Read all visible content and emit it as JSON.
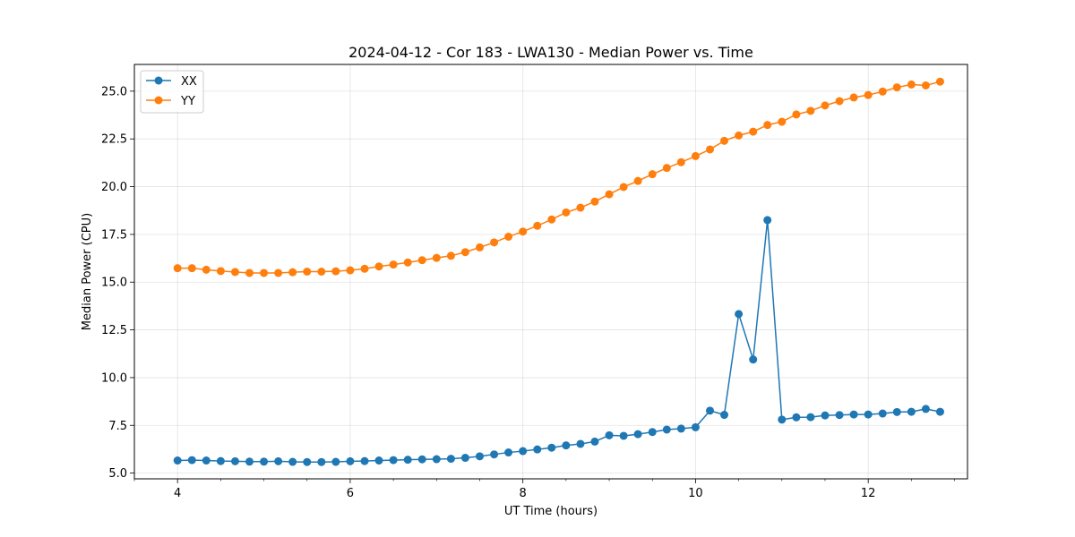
{
  "chart_data": {
    "type": "line",
    "title": "2024-04-12 - Cor 183 - LWA130 - Median Power vs. Time",
    "xlabel": "UT Time (hours)",
    "ylabel": "Median Power (CPU)",
    "xlim": [
      3.5,
      13.15
    ],
    "ylim": [
      4.7,
      26.4
    ],
    "xticks": [
      4,
      6,
      8,
      10,
      12
    ],
    "xtick_labels": [
      "4",
      "6",
      "8",
      "10",
      "12"
    ],
    "yticks": [
      5.0,
      7.5,
      10.0,
      12.5,
      15.0,
      17.5,
      20.0,
      22.5,
      25.0
    ],
    "ytick_labels": [
      "5.0",
      "7.5",
      "10.0",
      "12.5",
      "15.0",
      "17.5",
      "20.0",
      "22.5",
      "25.0"
    ],
    "grid": true,
    "legend_position": "top-left",
    "x": [
      4.0,
      4.167,
      4.333,
      4.5,
      4.667,
      4.833,
      5.0,
      5.167,
      5.333,
      5.5,
      5.667,
      5.833,
      6.0,
      6.167,
      6.333,
      6.5,
      6.667,
      6.833,
      7.0,
      7.167,
      7.333,
      7.5,
      7.667,
      7.833,
      8.0,
      8.167,
      8.333,
      8.5,
      8.667,
      8.833,
      9.0,
      9.167,
      9.333,
      9.5,
      9.667,
      9.833,
      10.0,
      10.167,
      10.333,
      10.5,
      10.667,
      10.833,
      11.0,
      11.167,
      11.333,
      11.5,
      11.667,
      11.833,
      12.0,
      12.167,
      12.333,
      12.5,
      12.667,
      12.833
    ],
    "series": [
      {
        "name": "XX",
        "color": "#1f77b4",
        "values": [
          5.66,
          5.68,
          5.66,
          5.63,
          5.62,
          5.6,
          5.6,
          5.62,
          5.59,
          5.58,
          5.58,
          5.59,
          5.62,
          5.63,
          5.66,
          5.68,
          5.7,
          5.72,
          5.73,
          5.75,
          5.8,
          5.88,
          5.98,
          6.08,
          6.15,
          6.24,
          6.33,
          6.45,
          6.53,
          6.65,
          6.98,
          6.95,
          7.04,
          7.15,
          7.28,
          7.33,
          7.4,
          8.27,
          8.05,
          13.33,
          10.95,
          18.25,
          7.8,
          7.92,
          7.93,
          8.02,
          8.04,
          8.07,
          8.07,
          8.12,
          8.2,
          8.21,
          8.36,
          8.21
        ]
      },
      {
        "name": "YY",
        "color": "#ff7f0e",
        "values": [
          15.73,
          15.73,
          15.65,
          15.58,
          15.53,
          15.48,
          15.48,
          15.48,
          15.52,
          15.55,
          15.55,
          15.57,
          15.62,
          15.7,
          15.82,
          15.92,
          16.03,
          16.15,
          16.27,
          16.38,
          16.57,
          16.82,
          17.08,
          17.38,
          17.65,
          17.95,
          18.28,
          18.65,
          18.9,
          19.22,
          19.6,
          19.98,
          20.3,
          20.65,
          20.98,
          21.28,
          21.6,
          21.95,
          22.4,
          22.68,
          22.88,
          23.23,
          23.4,
          23.78,
          23.97,
          24.25,
          24.48,
          24.67,
          24.8,
          24.98,
          25.2,
          25.35,
          25.3,
          25.5
        ]
      }
    ]
  }
}
